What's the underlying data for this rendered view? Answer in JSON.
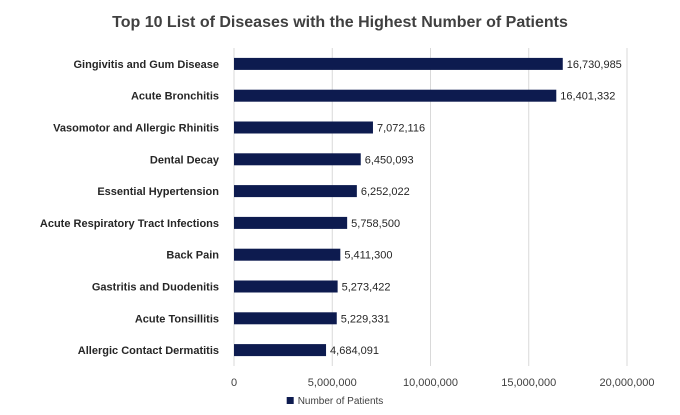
{
  "chart_data": {
    "type": "bar",
    "orientation": "horizontal",
    "title": "Top 10 List of Diseases with the Highest Number of Patients",
    "categories": [
      "Gingivitis and Gum Disease",
      "Acute Bronchitis",
      "Vasomotor and Allergic Rhinitis",
      "Dental Decay",
      "Essential Hypertension",
      "Acute Respiratory Tract Infections",
      "Back Pain",
      "Gastritis and Duodenitis",
      "Acute Tonsillitis",
      "Allergic Contact Dermatitis"
    ],
    "series": [
      {
        "name": "Number of Patients",
        "color": "#0d1b4f",
        "values": [
          16730985,
          16401332,
          7072116,
          6450093,
          6252022,
          5758500,
          5411300,
          5273422,
          5229331,
          4684091
        ],
        "value_labels": [
          "16,730,985",
          "16,401,332",
          "7,072,116",
          "6,450,093",
          "6,252,022",
          "5,758,500",
          "5,411,300",
          "5,273,422",
          "5,229,331",
          "4,684,091"
        ]
      }
    ],
    "xlim": [
      0,
      20000000
    ],
    "x_ticks": [
      0,
      5000000,
      10000000,
      15000000,
      20000000
    ],
    "x_tick_labels": [
      "0",
      "5,000,000",
      "10,000,000",
      "15,000,000",
      "20,000,000"
    ],
    "grid": true,
    "legend_position": "bottom"
  }
}
